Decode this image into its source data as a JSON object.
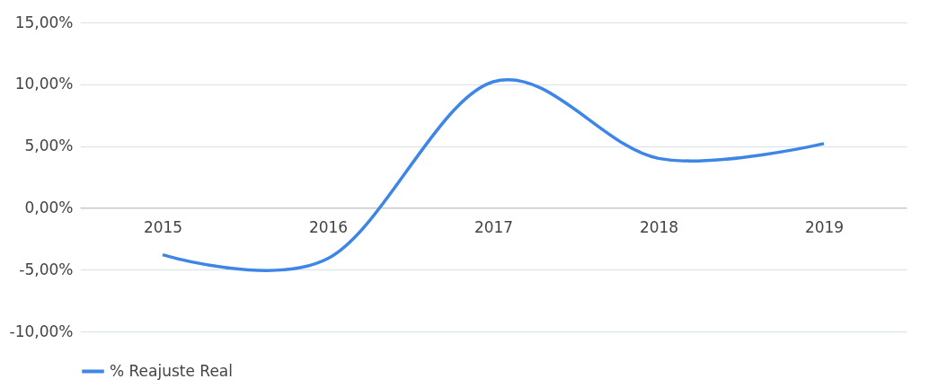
{
  "chart_data": {
    "type": "line",
    "categories": [
      "2015",
      "2016",
      "2017",
      "2018",
      "2019"
    ],
    "series": [
      {
        "name": "% Reajuste Real",
        "color": "#3d85e6",
        "values": [
          -3.8,
          -4.1,
          10.2,
          4.0,
          5.2
        ]
      }
    ],
    "ylim": [
      -10,
      15
    ],
    "yticks": [
      {
        "value": -10,
        "label": "-10,00%"
      },
      {
        "value": -5,
        "label": "-5,00%"
      },
      {
        "value": 0,
        "label": "0,00%"
      },
      {
        "value": 5,
        "label": "5,00%"
      },
      {
        "value": 10,
        "label": "10,00%"
      },
      {
        "value": 15,
        "label": "15,00%"
      }
    ],
    "grid": "y",
    "legend": "bottom",
    "marker": "none",
    "line_style": "solid"
  }
}
